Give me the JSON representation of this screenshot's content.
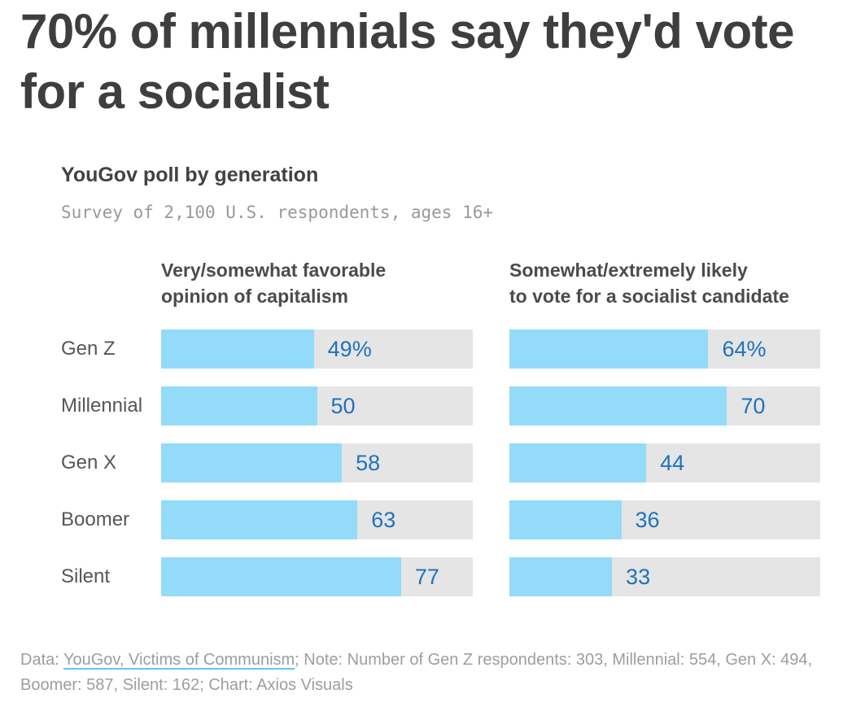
{
  "title": "70% of millennials say they'd vote for a socialist",
  "chart": {
    "subtitle": "YouGov poll by generation",
    "survey_note": "Survey of 2,100 U.S. respondents, ages 16+",
    "headers": {
      "left": {
        "line1": "Very/somewhat favorable",
        "line2": "opinion of capitalism"
      },
      "right": {
        "line1": "Somewhat/extremely likely",
        "line2": "to vote for a socialist candidate"
      }
    }
  },
  "chart_data": {
    "type": "bar",
    "orientation": "horizontal",
    "categories": [
      "Gen Z",
      "Millennial",
      "Gen X",
      "Boomer",
      "Silent"
    ],
    "series": [
      {
        "name": "Very/somewhat favorable opinion of capitalism",
        "values": [
          49,
          50,
          58,
          63,
          77
        ],
        "labels": [
          "49%",
          "50",
          "58",
          "63",
          "77"
        ]
      },
      {
        "name": "Somewhat/extremely likely to vote for a socialist candidate",
        "values": [
          64,
          70,
          44,
          36,
          33
        ],
        "labels": [
          "64%",
          "70",
          "44",
          "36",
          "33"
        ]
      }
    ],
    "xlim": [
      0,
      100
    ],
    "grid": false,
    "legend": "none",
    "colors": {
      "bar_fill": "#93dbf9",
      "bar_track": "#e5e5e5",
      "value_label": "#1f72be"
    }
  },
  "footer": {
    "prefix": "Data: ",
    "link": "YouGov, Victims of Communism",
    "suffix": "; Note: Number of Gen Z respondents: 303, Millennial: 554, Gen X: 494, Boomer: 587, Silent: 162; Chart: Axios Visuals"
  }
}
